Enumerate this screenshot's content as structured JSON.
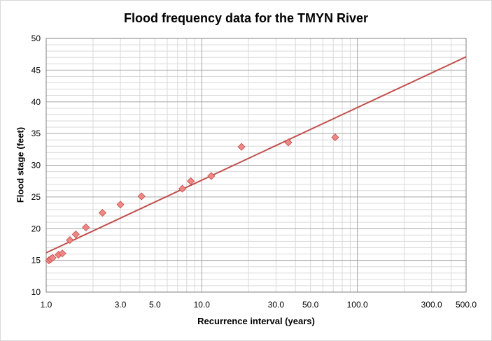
{
  "chart_data": {
    "type": "scatter",
    "title": "Flood frequency data for the TMYN River",
    "xlabel": "Recurrence interval (years)",
    "ylabel": "Flood stage (feet)",
    "x_scale": "log",
    "xlim": [
      1.0,
      500.0
    ],
    "ylim": [
      10,
      50
    ],
    "x_ticks": [
      1.0,
      3.0,
      5.0,
      10.0,
      30.0,
      50.0,
      100.0,
      300.0,
      500.0
    ],
    "x_tick_labels": [
      "1.0",
      "3.0",
      "5.0",
      "10.0",
      "30.0",
      "50.0",
      "100.0",
      "300.0",
      "500.0"
    ],
    "y_ticks": [
      10,
      15,
      20,
      25,
      30,
      35,
      40,
      45,
      50
    ],
    "y_tick_labels": [
      "10",
      "15",
      "20",
      "25",
      "30",
      "35",
      "40",
      "45",
      "50"
    ],
    "grid": true,
    "series": [
      {
        "marker": "diamond",
        "color": "#f08784",
        "points": [
          {
            "x": 1.04,
            "y": 15.0
          },
          {
            "x": 1.07,
            "y": 15.2
          },
          {
            "x": 1.1,
            "y": 15.4
          },
          {
            "x": 1.2,
            "y": 15.9
          },
          {
            "x": 1.27,
            "y": 16.1
          },
          {
            "x": 1.42,
            "y": 18.2
          },
          {
            "x": 1.55,
            "y": 19.1
          },
          {
            "x": 1.8,
            "y": 20.2
          },
          {
            "x": 2.3,
            "y": 22.5
          },
          {
            "x": 3.0,
            "y": 23.8
          },
          {
            "x": 4.1,
            "y": 25.1
          },
          {
            "x": 7.5,
            "y": 26.3
          },
          {
            "x": 8.5,
            "y": 27.5
          },
          {
            "x": 11.5,
            "y": 28.3
          },
          {
            "x": 18.0,
            "y": 32.9
          },
          {
            "x": 36.0,
            "y": 33.6
          },
          {
            "x": 72.0,
            "y": 34.4
          }
        ]
      }
    ],
    "trendline": {
      "type": "logarithmic",
      "color": "#c0504d",
      "from": {
        "x": 1.0,
        "y": 16.2
      },
      "to": {
        "x": 500.0,
        "y": 47.1
      }
    }
  }
}
